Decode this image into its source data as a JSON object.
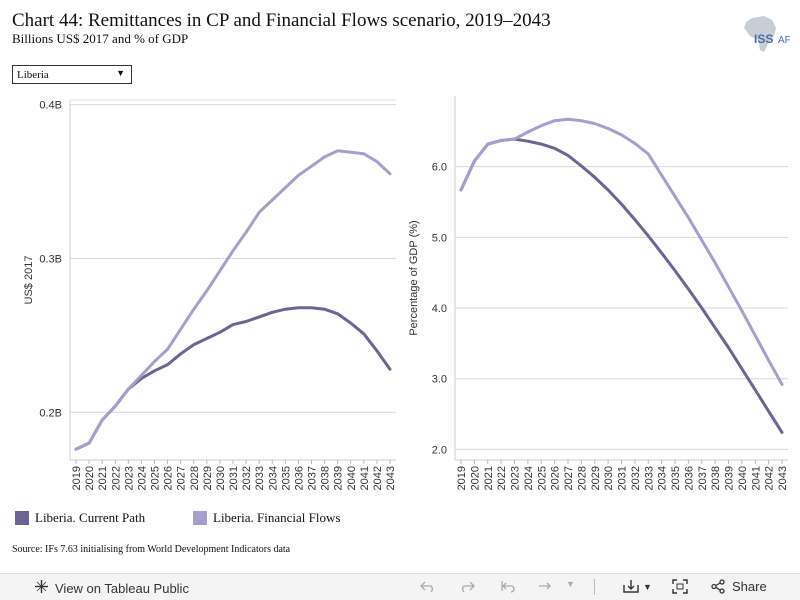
{
  "header": {
    "title": "Chart 44: Remittances in CP and Financial Flows scenario, 2019–2043",
    "subtitle": "Billions US$ 2017 and % of GDP",
    "logo_text": "ISS",
    "logo_suffix": "AFI"
  },
  "filter": {
    "selected": "Liberia"
  },
  "colors": {
    "current_path": "#6b6494",
    "financial_flows": "#a49fcd"
  },
  "chart_data": [
    {
      "type": "line",
      "title": "",
      "xlabel": "",
      "ylabel": "US$ 2017",
      "ytick_labels": [
        "0.2B",
        "0.3B",
        "0.4B"
      ],
      "yticks": [
        0.2,
        0.3,
        0.4
      ],
      "ylim": [
        0.169,
        0.403
      ],
      "grid": true,
      "legend": "bottom",
      "x": [
        "2019",
        "2020",
        "2021",
        "2022",
        "2023",
        "2024",
        "2025",
        "2026",
        "2027",
        "2028",
        "2029",
        "2030",
        "2031",
        "2032",
        "2033",
        "2034",
        "2035",
        "2036",
        "2037",
        "2038",
        "2039",
        "2040",
        "2041",
        "2042",
        "2043"
      ],
      "series": [
        {
          "name": "Liberia. Current Path",
          "values": [
            0.176,
            0.18,
            0.195,
            0.204,
            0.215,
            0.222,
            0.227,
            0.231,
            0.238,
            0.244,
            0.248,
            0.252,
            0.257,
            0.259,
            0.262,
            0.265,
            0.267,
            0.268,
            0.268,
            0.267,
            0.264,
            0.258,
            0.251,
            0.24,
            0.228
          ]
        },
        {
          "name": "Liberia. Financial Flows",
          "values": [
            0.176,
            0.18,
            0.195,
            0.204,
            0.215,
            0.224,
            0.233,
            0.241,
            0.254,
            0.267,
            0.279,
            0.292,
            0.305,
            0.317,
            0.33,
            0.338,
            0.346,
            0.354,
            0.36,
            0.366,
            0.37,
            0.369,
            0.368,
            0.363,
            0.355
          ]
        }
      ]
    },
    {
      "type": "line",
      "title": "",
      "xlabel": "",
      "ylabel": "Percentage of GDP (%)",
      "ytick_labels": [
        "2.0",
        "3.0",
        "4.0",
        "5.0",
        "6.0"
      ],
      "yticks": [
        2.0,
        3.0,
        4.0,
        5.0,
        6.0
      ],
      "ylim": [
        1.85,
        7.0
      ],
      "grid": true,
      "legend": "bottom",
      "x": [
        "2019",
        "2020",
        "2021",
        "2022",
        "2023",
        "2024",
        "2025",
        "2026",
        "2027",
        "2028",
        "2029",
        "2030",
        "2031",
        "2032",
        "2033",
        "2034",
        "2035",
        "2036",
        "2037",
        "2038",
        "2039",
        "2040",
        "2041",
        "2042",
        "2043"
      ],
      "series": [
        {
          "name": "Liberia. Current Path",
          "values": [
            5.67,
            6.08,
            6.32,
            6.37,
            6.39,
            6.36,
            6.32,
            6.26,
            6.16,
            6.01,
            5.85,
            5.67,
            5.47,
            5.25,
            5.02,
            4.78,
            4.53,
            4.27,
            4.0,
            3.72,
            3.44,
            3.14,
            2.84,
            2.54,
            2.24
          ]
        },
        {
          "name": "Liberia. Financial Flows",
          "values": [
            5.67,
            6.08,
            6.32,
            6.37,
            6.39,
            6.49,
            6.58,
            6.65,
            6.67,
            6.65,
            6.61,
            6.54,
            6.45,
            6.33,
            6.18,
            5.88,
            5.58,
            5.28,
            4.96,
            4.64,
            4.3,
            3.96,
            3.61,
            3.26,
            2.92
          ]
        }
      ]
    }
  ],
  "legend": {
    "current_path": "Liberia. Current Path",
    "financial_flows": "Liberia. Financial Flows"
  },
  "source": "Source: IFs 7.63 initialising from World Development Indicators data",
  "toolbar": {
    "view_label": "View on Tableau Public",
    "share_label": "Share"
  }
}
